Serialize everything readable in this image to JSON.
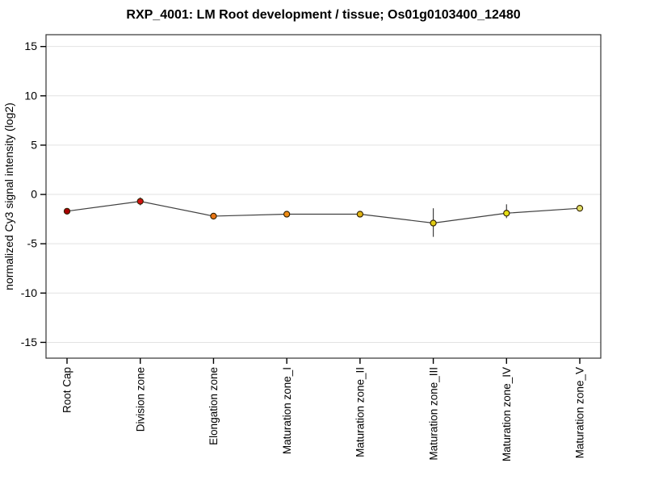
{
  "page": {
    "background_color": "#ffffff"
  },
  "chart_data": {
    "type": "line",
    "title": "RXP_4001: LM Root development / tissue; Os01g0103400_12480",
    "xlabel": "",
    "ylabel": "normalized Cy3 signal intensity (log2)",
    "categories": [
      "Root Cap",
      "Division zone",
      "Elongation zone",
      "Maturation zone_I",
      "Maturation zone_II",
      "Maturation zone_III",
      "Maturation zone_IV",
      "Maturation zone_V"
    ],
    "series": [
      {
        "name": "normalized Cy3 signal intensity (log2)",
        "values": [
          -1.7,
          -0.7,
          -2.2,
          -2.0,
          -2.0,
          -2.9,
          -1.9,
          -1.4
        ],
        "error_low": [
          null,
          -1.1,
          -2.4,
          -2.3,
          -2.3,
          -4.3,
          -2.4,
          null
        ],
        "error_high": [
          null,
          -0.3,
          -2.0,
          -1.7,
          -1.7,
          -1.4,
          -1.0,
          null
        ],
        "point_colors": [
          "#a80000",
          "#d01010",
          "#e87414",
          "#f08c14",
          "#e0b414",
          "#e0cc14",
          "#e4de14",
          "#e0dc64"
        ]
      }
    ],
    "ylim": [
      -16.6,
      16.2
    ],
    "yticks": [
      15,
      10,
      5,
      0,
      -5,
      -10,
      -15
    ],
    "grid": true,
    "legend": "none",
    "colors": {
      "gridline": "#e2e2e2",
      "line": "#404040",
      "error_bar": "#404040",
      "point_outline": "#302000",
      "box": "#333333",
      "tick": "#000000"
    }
  }
}
